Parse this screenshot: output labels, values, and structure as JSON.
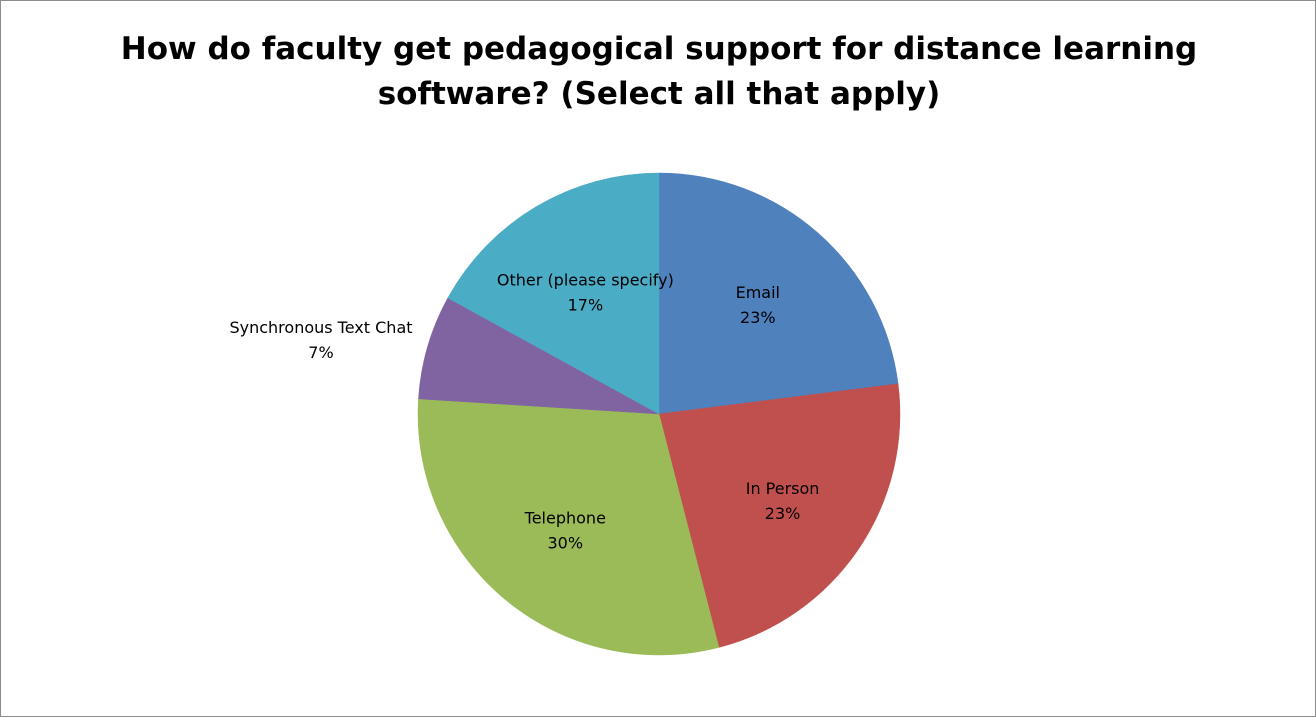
{
  "chart_data": {
    "type": "pie",
    "title_lines": [
      "How do faculty get pedagogical support for distance learning",
      "software? (Select all that apply)"
    ],
    "categories": [
      "Email",
      "In Person",
      "Telephone",
      "Synchronous Text Chat",
      "Other (please specify)"
    ],
    "values": [
      23,
      23,
      30,
      7,
      17
    ],
    "value_labels": [
      "23%",
      "23%",
      "30%",
      "7%",
      "17%"
    ],
    "colors": [
      "#4f81bd",
      "#c0504d",
      "#9bbb59",
      "#8064a2",
      "#4bacc6"
    ],
    "legend": "none",
    "data_labels": "category name and percentage"
  }
}
